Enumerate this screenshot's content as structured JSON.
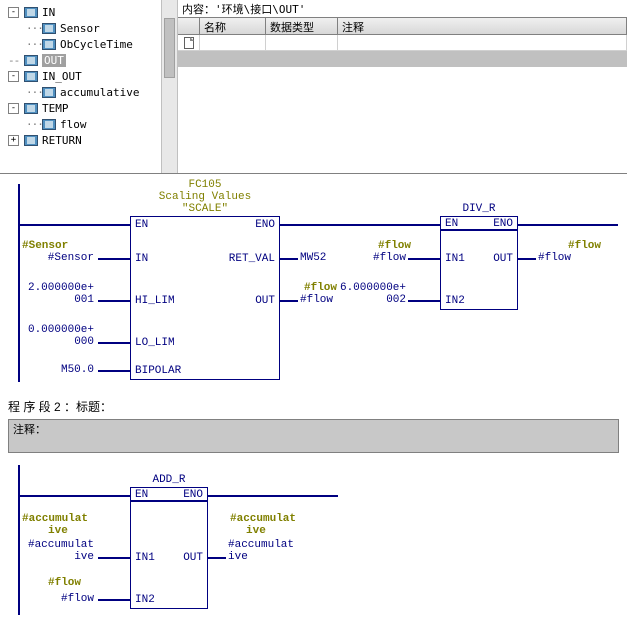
{
  "tree": {
    "items": [
      {
        "indent": 0,
        "expander": "-",
        "icon": true,
        "label": "IN"
      },
      {
        "indent": 1,
        "expander": "",
        "icon": true,
        "label": "Sensor",
        "dots": true
      },
      {
        "indent": 1,
        "expander": "",
        "icon": true,
        "label": "ObCycleTime",
        "dots": true
      },
      {
        "indent": 0,
        "expander": "",
        "icon": true,
        "label": "OUT",
        "selected": true,
        "dash": true
      },
      {
        "indent": 0,
        "expander": "-",
        "icon": true,
        "label": "IN_OUT"
      },
      {
        "indent": 1,
        "expander": "",
        "icon": true,
        "label": "accumulative",
        "dots": true
      },
      {
        "indent": 0,
        "expander": "-",
        "icon": true,
        "label": "TEMP"
      },
      {
        "indent": 1,
        "expander": "",
        "icon": true,
        "label": "flow",
        "dots": true
      },
      {
        "indent": 0,
        "expander": "+",
        "icon": true,
        "label": "RETURN"
      }
    ]
  },
  "path_bar": {
    "label": "内容：",
    "value": "'环境\\接口\\OUT'"
  },
  "table": {
    "headers": {
      "name": "名称",
      "type": "数据类型",
      "comment": "注释"
    }
  },
  "net1": {
    "block1": {
      "header": [
        "FC105",
        "Scaling Values",
        "\"SCALE\""
      ],
      "pins": {
        "en": "EN",
        "eno": "ENO",
        "in": "IN",
        "retval": "RET_VAL",
        "hilim": "HI_LIM",
        "out": "OUT",
        "lolim": "LO_LIM",
        "bipolar": "BIPOLAR"
      },
      "left": {
        "sensor_sym": "#Sensor",
        "sensor_val": "#Sensor",
        "hilim_val1": "2.000000e+",
        "hilim_val2": "001",
        "lolim_val1": "0.000000e+",
        "lolim_val2": "000",
        "bipolar_val": "M50.0"
      },
      "right": {
        "retval": "MW52",
        "out_sym": "#flow",
        "out_val": "#flow"
      }
    },
    "block2": {
      "header": "DIV_R",
      "pins": {
        "en": "EN",
        "eno": "ENO",
        "in1": "IN1",
        "out": "OUT",
        "in2": "IN2"
      },
      "left": {
        "in1_sym": "#flow",
        "in1_val": "#flow",
        "in2_val1": "6.000000e+",
        "in2_val2": "002"
      },
      "right": {
        "out_sym": "#flow",
        "out_val": "#flow"
      }
    }
  },
  "section2": {
    "title": "程 序 段  2 ：标题：",
    "comment_label": "注释："
  },
  "net2": {
    "block": {
      "header": "ADD_R",
      "pins": {
        "en": "EN",
        "eno": "ENO",
        "in1": "IN1",
        "out": "OUT",
        "in2": "IN2"
      },
      "left": {
        "in1_sym1": "#accumulat",
        "in1_sym2": "ive",
        "in1_val1": "#accumulat",
        "in1_val2": "ive",
        "in2_sym": "#flow",
        "in2_val": "#flow"
      },
      "right": {
        "out_sym1": "#accumulat",
        "out_sym2": "ive",
        "out_val1": "#accumulat",
        "out_val2": "ive"
      }
    }
  },
  "colors": {
    "wire": "#000080",
    "symbol": "#808000"
  }
}
